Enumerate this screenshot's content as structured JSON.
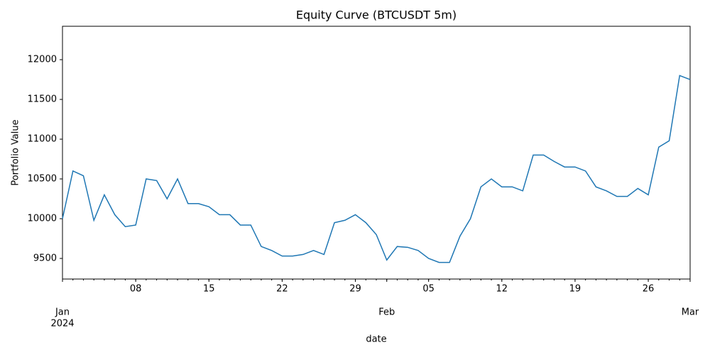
{
  "chart_data": {
    "type": "line",
    "title": "Equity Curve (BTCUSDT 5m)",
    "x_label": "date",
    "y_label": "Portfolio Value",
    "x": [
      "2024-01-01",
      "2024-01-02",
      "2024-01-03",
      "2024-01-04",
      "2024-01-05",
      "2024-01-06",
      "2024-01-07",
      "2024-01-08",
      "2024-01-09",
      "2024-01-10",
      "2024-01-11",
      "2024-01-12",
      "2024-01-13",
      "2024-01-14",
      "2024-01-15",
      "2024-01-16",
      "2024-01-17",
      "2024-01-18",
      "2024-01-19",
      "2024-01-20",
      "2024-01-21",
      "2024-01-22",
      "2024-01-23",
      "2024-01-24",
      "2024-01-25",
      "2024-01-26",
      "2024-01-27",
      "2024-01-28",
      "2024-01-29",
      "2024-01-30",
      "2024-01-31",
      "2024-02-01",
      "2024-02-02",
      "2024-02-03",
      "2024-02-04",
      "2024-02-05",
      "2024-02-06",
      "2024-02-07",
      "2024-02-08",
      "2024-02-09",
      "2024-02-10",
      "2024-02-11",
      "2024-02-12",
      "2024-02-13",
      "2024-02-14",
      "2024-02-15",
      "2024-02-16",
      "2024-02-17",
      "2024-02-18",
      "2024-02-19",
      "2024-02-20",
      "2024-02-21",
      "2024-02-22",
      "2024-02-23",
      "2024-02-24",
      "2024-02-25",
      "2024-02-26",
      "2024-02-27",
      "2024-02-28",
      "2024-02-29",
      "2024-03-01"
    ],
    "series": [
      {
        "name": "Portfolio Value",
        "color": "#1f77b4",
        "values": [
          10000,
          10600,
          10540,
          9980,
          10300,
          10050,
          9900,
          9920,
          10500,
          10480,
          10250,
          10500,
          10190,
          10190,
          10150,
          10050,
          10050,
          9920,
          9920,
          9650,
          9600,
          9530,
          9530,
          9550,
          9600,
          9550,
          9950,
          9980,
          10050,
          9950,
          9800,
          9480,
          9650,
          9640,
          9600,
          9500,
          9450,
          9450,
          9780,
          10000,
          10400,
          10500,
          10400,
          10400,
          10350,
          10800,
          10800,
          10720,
          10650,
          10650,
          10600,
          10400,
          10350,
          10280,
          10280,
          10380,
          10300,
          10900,
          10980,
          11800,
          11750
        ]
      }
    ],
    "xlim": [
      "2024-01-01",
      "2024-03-01"
    ],
    "xticks": [
      {
        "value": "2024-01-01",
        "label": "Jan"
      },
      {
        "value": "2024-01-08",
        "label": "08"
      },
      {
        "value": "2024-01-15",
        "label": "15"
      },
      {
        "value": "2024-01-22",
        "label": "22"
      },
      {
        "value": "2024-01-29",
        "label": "29"
      },
      {
        "value": "2024-02-01",
        "label": "Feb"
      },
      {
        "value": "2024-02-05",
        "label": "05"
      },
      {
        "value": "2024-02-12",
        "label": "12"
      },
      {
        "value": "2024-02-19",
        "label": "19"
      },
      {
        "value": "2024-02-26",
        "label": "26"
      },
      {
        "value": "2024-03-01",
        "label": "Mar"
      }
    ],
    "xtick_year": "2024",
    "ylim": [
      9241,
      12420
    ],
    "yticks": [
      9500,
      10000,
      10500,
      11000,
      11500,
      12000
    ],
    "grid": false
  }
}
